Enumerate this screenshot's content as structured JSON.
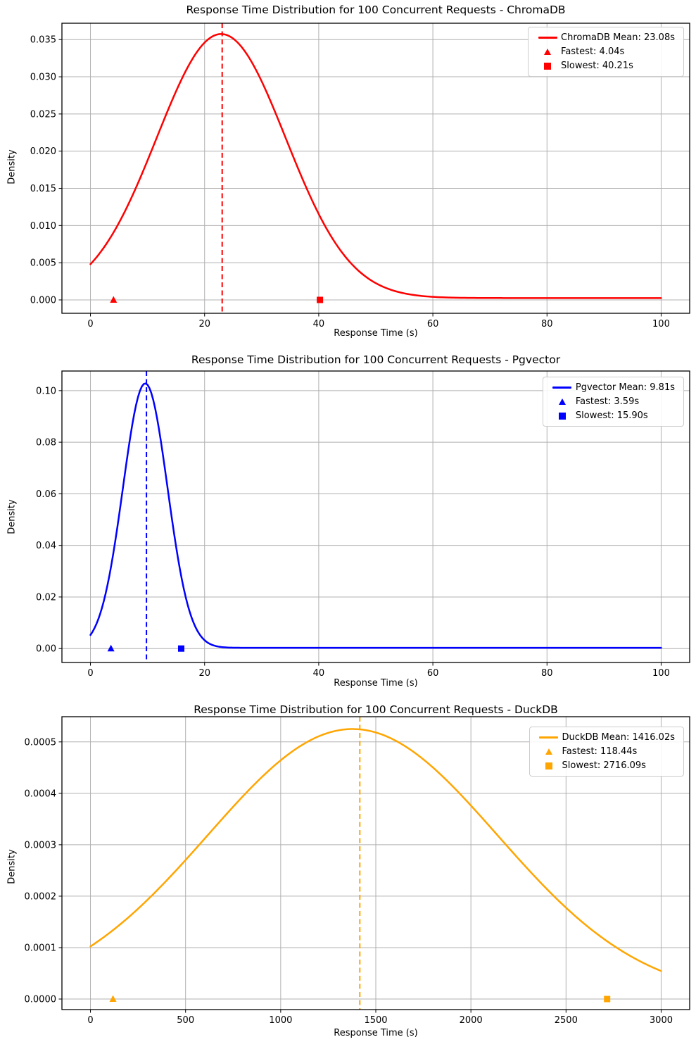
{
  "figure": {
    "background": "#ffffff",
    "grid_color": "#b0b0b0",
    "axis_color": "#000000",
    "text_color": "#000000"
  },
  "chart_data": [
    {
      "type": "line",
      "title": "Response Time Distribution for 100 Concurrent Requests - ChromaDB",
      "xlabel": "Response Time (s)",
      "ylabel": "Density",
      "series_name": "ChromaDB",
      "color": "#ff0000",
      "mean_s": 23.08,
      "fastest_s": 4.04,
      "slowest_s": 40.21,
      "legend_position": "upper right",
      "legend": [
        {
          "marker": "line",
          "label": "ChromaDB Mean: 23.08s"
        },
        {
          "marker": "triangle",
          "label": "Fastest: 4.04s"
        },
        {
          "marker": "square",
          "label": "Slowest: 40.21s"
        }
      ],
      "grid": true,
      "xlim": [
        -5,
        105
      ],
      "ylim": [
        -0.0018,
        0.0372
      ],
      "xticks": [
        0,
        20,
        40,
        60,
        80,
        100
      ],
      "xtick_labels": [
        "0",
        "20",
        "40",
        "60",
        "80",
        "100"
      ],
      "yticks": [
        0,
        0.005,
        0.01,
        0.015,
        0.02,
        0.025,
        0.03,
        0.035
      ],
      "ytick_labels": [
        "0.000",
        "0.005",
        "0.010",
        "0.015",
        "0.020",
        "0.025",
        "0.030",
        "0.035"
      ],
      "curve": {
        "shape": "gaussian_kde",
        "center": 22.9,
        "sigma": 11.3,
        "peak_density": 0.0355,
        "tail_baseline": 0.00025,
        "x_start": 0,
        "x_end": 100
      },
      "mean_line_x": 23.08,
      "markers": [
        {
          "shape": "triangle",
          "x": 4.04,
          "y": 0
        },
        {
          "shape": "square",
          "x": 40.21,
          "y": 0
        }
      ]
    },
    {
      "type": "line",
      "title": "Response Time Distribution for 100 Concurrent Requests - Pgvector",
      "xlabel": "Response Time (s)",
      "ylabel": "Density",
      "series_name": "Pgvector",
      "color": "#0000ff",
      "mean_s": 9.81,
      "fastest_s": 3.59,
      "slowest_s": 15.9,
      "legend_position": "upper right",
      "legend": [
        {
          "marker": "line",
          "label": "Pgvector Mean: 9.81s"
        },
        {
          "marker": "triangle",
          "label": "Fastest: 3.59s"
        },
        {
          "marker": "square",
          "label": "Slowest: 15.90s"
        }
      ],
      "grid": true,
      "xlim": [
        -5,
        105
      ],
      "ylim": [
        -0.0054,
        0.1076
      ],
      "xticks": [
        0,
        20,
        40,
        60,
        80,
        100
      ],
      "xtick_labels": [
        "0",
        "20",
        "40",
        "60",
        "80",
        "100"
      ],
      "yticks": [
        0,
        0.02,
        0.04,
        0.06,
        0.08,
        0.1
      ],
      "ytick_labels": [
        "0.00",
        "0.02",
        "0.04",
        "0.06",
        "0.08",
        "0.10"
      ],
      "curve": {
        "shape": "gaussian_kde",
        "center": 9.6,
        "sigma": 3.9,
        "peak_density": 0.1025,
        "tail_baseline": 0.0003,
        "x_start": 0,
        "x_end": 100
      },
      "mean_line_x": 9.81,
      "markers": [
        {
          "shape": "triangle",
          "x": 3.59,
          "y": 0
        },
        {
          "shape": "square",
          "x": 15.9,
          "y": 0
        }
      ]
    },
    {
      "type": "line",
      "title": "Response Time Distribution for 100 Concurrent Requests - DuckDB",
      "xlabel": "Response Time (s)",
      "ylabel": "Density",
      "series_name": "DuckDB",
      "color": "#ffa500",
      "mean_s": 1416.02,
      "fastest_s": 118.44,
      "slowest_s": 2716.09,
      "legend_position": "upper right",
      "legend": [
        {
          "marker": "line",
          "label": "DuckDB Mean: 1416.02s"
        },
        {
          "marker": "triangle",
          "label": "Fastest: 118.44s"
        },
        {
          "marker": "square",
          "label": "Slowest: 2716.09s"
        }
      ],
      "grid": true,
      "xlim": [
        -150,
        3150
      ],
      "ylim": [
        -2.05e-05,
        0.000549
      ],
      "xticks": [
        0,
        500,
        1000,
        1500,
        2000,
        2500,
        3000
      ],
      "xtick_labels": [
        "0",
        "500",
        "1000",
        "1500",
        "2000",
        "2500",
        "3000"
      ],
      "yticks": [
        0,
        0.0001,
        0.0002,
        0.0003,
        0.0004,
        0.0005
      ],
      "ytick_labels": [
        "0.0000",
        "0.0001",
        "0.0002",
        "0.0003",
        "0.0004",
        "0.0005"
      ],
      "curve": {
        "shape": "gaussian_kde",
        "center": 1378,
        "sigma": 762,
        "peak_density": 0.000525,
        "tail_baseline": 0,
        "x_start": 0,
        "x_end": 3000
      },
      "mean_line_x": 1416.02,
      "markers": [
        {
          "shape": "triangle",
          "x": 118.44,
          "y": 0
        },
        {
          "shape": "square",
          "x": 2716.09,
          "y": 0
        }
      ]
    }
  ]
}
